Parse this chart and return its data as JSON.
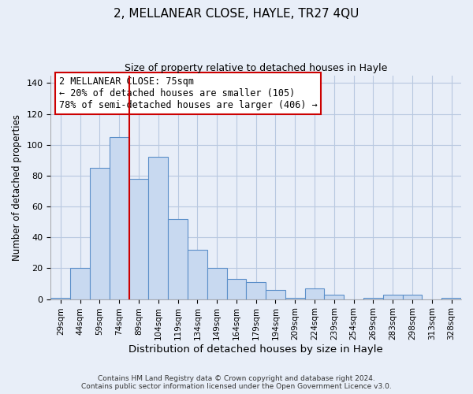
{
  "title": "2, MELLANEAR CLOSE, HAYLE, TR27 4QU",
  "subtitle": "Size of property relative to detached houses in Hayle",
  "xlabel": "Distribution of detached houses by size in Hayle",
  "ylabel": "Number of detached properties",
  "categories": [
    "29sqm",
    "44sqm",
    "59sqm",
    "74sqm",
    "89sqm",
    "104sqm",
    "119sqm",
    "134sqm",
    "149sqm",
    "164sqm",
    "179sqm",
    "194sqm",
    "209sqm",
    "224sqm",
    "239sqm",
    "254sqm",
    "269sqm",
    "283sqm",
    "298sqm",
    "313sqm",
    "328sqm"
  ],
  "values": [
    1,
    20,
    85,
    105,
    78,
    92,
    52,
    32,
    20,
    13,
    11,
    6,
    1,
    7,
    3,
    0,
    1,
    3,
    3,
    0,
    1
  ],
  "bar_color": "#c8d9f0",
  "bar_edge_color": "#5b8fc9",
  "vline_color": "#cc0000",
  "annotation_text": "2 MELLANEAR CLOSE: 75sqm\n← 20% of detached houses are smaller (105)\n78% of semi-detached houses are larger (406) →",
  "annotation_box_color": "white",
  "annotation_box_edge_color": "#cc0000",
  "ylim": [
    0,
    145
  ],
  "yticks": [
    0,
    20,
    40,
    60,
    80,
    100,
    120,
    140
  ],
  "footer": "Contains HM Land Registry data © Crown copyright and database right 2024.\nContains public sector information licensed under the Open Government Licence v3.0.",
  "bg_color": "#e8eef8",
  "plot_bg_color": "#e8eef8",
  "grid_color": "#b8c8e0",
  "title_fontsize": 11,
  "subtitle_fontsize": 9
}
